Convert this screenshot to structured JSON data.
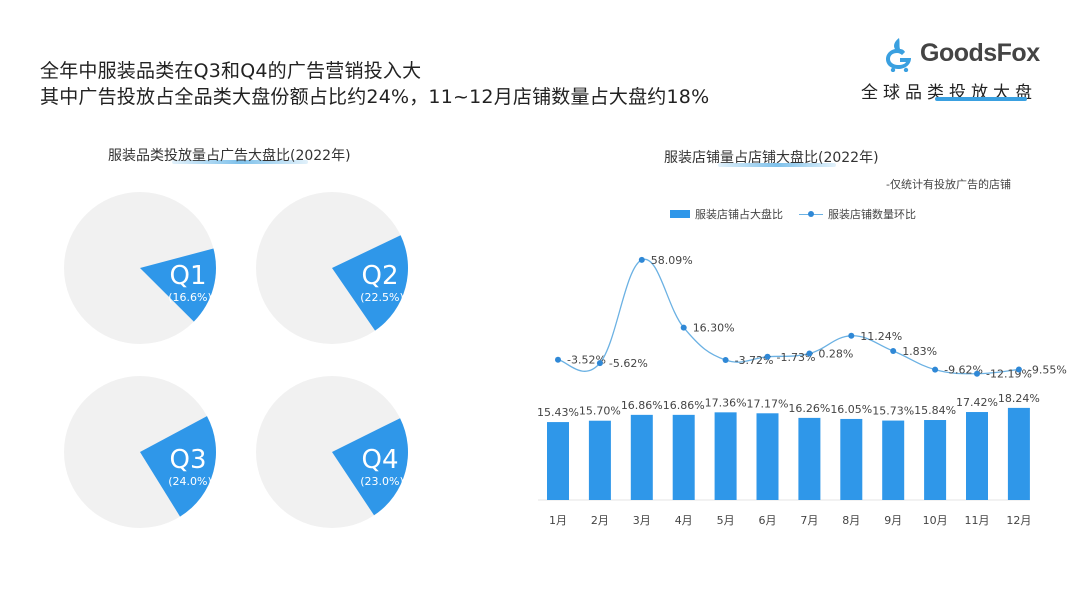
{
  "header": {
    "headline_line1": "全年中服装品类在Q3和Q4的广告营销投入大",
    "headline_line2": "其中广告投放占全品类大盘份额占比约24%，11~12月店铺数量占大盘约18%"
  },
  "brand": {
    "name": "GoodsFox",
    "subtitle": "全球品类投放大盘",
    "accent": "#3aa0e0"
  },
  "colors": {
    "pie_slice": "#2f97e9",
    "pie_bg": "#f1f1f1",
    "bar": "#2f97e9",
    "line": "#6bb1e3",
    "point": "#2f88d6"
  },
  "chart_data": [
    {
      "type": "pie",
      "title": "服装品类投放量占广告大盘比(2022年)",
      "categories": [
        "Q1",
        "Q2",
        "Q3",
        "Q4"
      ],
      "values": [
        16.6,
        22.5,
        24.0,
        23.0
      ],
      "labels": [
        "(16.6%)",
        "(22.5%)",
        "(24.0%)",
        "(23.0%)"
      ],
      "unit": "%"
    },
    {
      "type": "bar+line",
      "title": "服装店铺量占店铺大盘比(2022年)",
      "note": "-仅统计有投放广告的店铺",
      "categories": [
        "1月",
        "2月",
        "3月",
        "4月",
        "5月",
        "6月",
        "7月",
        "8月",
        "9月",
        "10月",
        "11月",
        "12月"
      ],
      "series": [
        {
          "name": "服装店铺占大盘比",
          "type": "bar",
          "values": [
            15.43,
            15.7,
            16.86,
            16.86,
            17.36,
            17.17,
            16.26,
            16.05,
            15.73,
            15.84,
            17.42,
            18.24
          ],
          "labels": [
            "15.43%",
            "15.70%",
            "16.86%",
            "16.86%",
            "17.36%",
            "17.17%",
            "16.26%",
            "16.05%",
            "15.73%",
            "15.84%",
            "17.42%",
            "18.24%"
          ]
        },
        {
          "name": "服装店铺数量环比",
          "type": "line",
          "values": [
            -3.52,
            -5.62,
            58.09,
            16.3,
            -3.72,
            -1.73,
            0.28,
            11.24,
            1.83,
            -9.62,
            -12.19,
            -9.55
          ],
          "labels": [
            "-3.52%",
            "-5.62%",
            "58.09%",
            "16.30%",
            "-3.72%",
            "-1.73%",
            "0.28%",
            "11.24%",
            "1.83%",
            "-9.62%",
            "-12.19%",
            "-9.55%"
          ]
        }
      ],
      "legend_position": "top",
      "grid": false
    }
  ]
}
